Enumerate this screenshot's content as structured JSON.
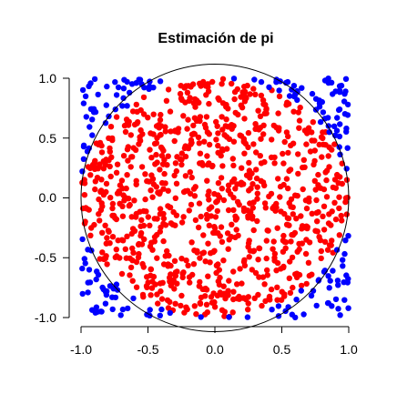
{
  "chart_data": {
    "type": "scatter",
    "title": "Estimación de pi",
    "xlabel": "",
    "ylabel": "",
    "xlim": [
      -1.0,
      1.0
    ],
    "ylim": [
      -1.0,
      1.0
    ],
    "x_ticks": [
      "-1.0",
      "-0.5",
      "0.0",
      "0.5",
      "1.0"
    ],
    "y_ticks": [
      "-1.0",
      "-0.5",
      "0.0",
      "0.5",
      "1.0"
    ],
    "grid": false,
    "legend": "none",
    "reference_shape": {
      "type": "circle",
      "center": [
        0,
        0
      ],
      "radius": 1
    },
    "series": [
      {
        "point_count": 900,
        "color": "#ff0000",
        "region": "inside-circle"
      },
      {
        "point_count": 200,
        "color": "#0000ff",
        "region": "outside-circle"
      }
    ]
  }
}
